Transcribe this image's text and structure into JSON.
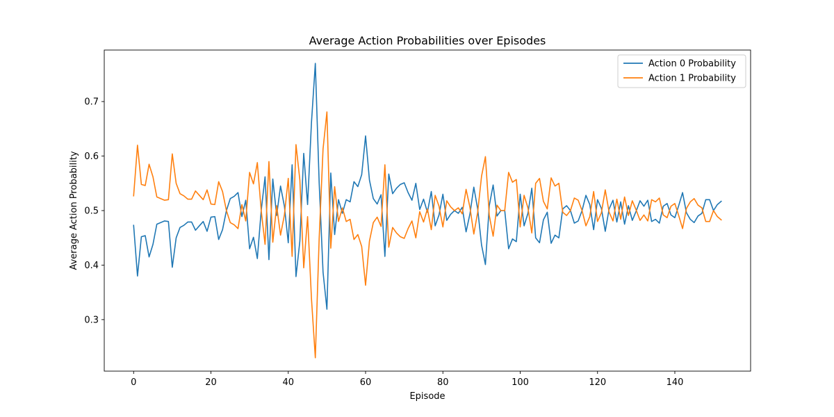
{
  "chart_data": {
    "type": "line",
    "title": "Average Action Probabilities over Episodes",
    "xlabel": "Episode",
    "ylabel": "Average Action Probability",
    "xlim": [
      -7.6,
      159.6
    ],
    "ylim": [
      0.2055,
      0.7945
    ],
    "xticks": [
      0,
      20,
      40,
      60,
      80,
      100,
      120,
      140
    ],
    "yticks": [
      0.3,
      0.4,
      0.5,
      0.6,
      0.7
    ],
    "grid": false,
    "legend_position": "top-right",
    "series": [
      {
        "name": "Action 0 Probability",
        "color": "#1f77b4",
        "values": [
          0.473,
          0.38,
          0.452,
          0.454,
          0.415,
          0.438,
          0.475,
          0.478,
          0.481,
          0.48,
          0.396,
          0.45,
          0.469,
          0.473,
          0.479,
          0.479,
          0.464,
          0.472,
          0.48,
          0.462,
          0.488,
          0.489,
          0.447,
          0.465,
          0.5,
          0.522,
          0.526,
          0.533,
          0.489,
          0.519,
          0.43,
          0.451,
          0.412,
          0.5,
          0.562,
          0.41,
          0.558,
          0.491,
          0.545,
          0.508,
          0.441,
          0.584,
          0.379,
          0.444,
          0.605,
          0.511,
          0.661,
          0.77,
          0.55,
          0.387,
          0.319,
          0.569,
          0.456,
          0.52,
          0.495,
          0.52,
          0.516,
          0.553,
          0.544,
          0.566,
          0.637,
          0.556,
          0.522,
          0.512,
          0.529,
          0.416,
          0.567,
          0.531,
          0.541,
          0.548,
          0.551,
          0.533,
          0.519,
          0.55,
          0.502,
          0.521,
          0.497,
          0.535,
          0.472,
          0.492,
          0.53,
          0.482,
          0.493,
          0.5,
          0.495,
          0.506,
          0.461,
          0.494,
          0.543,
          0.503,
          0.437,
          0.401,
          0.509,
          0.547,
          0.49,
          0.5,
          0.5,
          0.43,
          0.448,
          0.443,
          0.53,
          0.472,
          0.495,
          0.541,
          0.45,
          0.441,
          0.483,
          0.497,
          0.44,
          0.455,
          0.45,
          0.503,
          0.509,
          0.5,
          0.477,
          0.481,
          0.5,
          0.528,
          0.511,
          0.465,
          0.52,
          0.504,
          0.462,
          0.503,
          0.519,
          0.479,
          0.516,
          0.475,
          0.509,
          0.482,
          0.499,
          0.518,
          0.508,
          0.519,
          0.48,
          0.484,
          0.477,
          0.508,
          0.513,
          0.492,
          0.487,
          0.509,
          0.533,
          0.496,
          0.484,
          0.478,
          0.49,
          0.495,
          0.52,
          0.52,
          0.5,
          0.511,
          0.517
        ]
      },
      {
        "name": "Action 1 Probability",
        "color": "#ff7f0e",
        "values": [
          0.527,
          0.62,
          0.548,
          0.546,
          0.585,
          0.562,
          0.525,
          0.522,
          0.519,
          0.52,
          0.604,
          0.55,
          0.531,
          0.527,
          0.521,
          0.521,
          0.536,
          0.528,
          0.52,
          0.538,
          0.512,
          0.511,
          0.553,
          0.535,
          0.5,
          0.478,
          0.474,
          0.467,
          0.511,
          0.481,
          0.57,
          0.549,
          0.588,
          0.5,
          0.438,
          0.59,
          0.442,
          0.509,
          0.455,
          0.492,
          0.559,
          0.416,
          0.621,
          0.556,
          0.395,
          0.489,
          0.339,
          0.23,
          0.45,
          0.613,
          0.681,
          0.431,
          0.544,
          0.48,
          0.505,
          0.48,
          0.484,
          0.447,
          0.456,
          0.434,
          0.363,
          0.444,
          0.478,
          0.488,
          0.471,
          0.584,
          0.433,
          0.469,
          0.459,
          0.452,
          0.449,
          0.467,
          0.481,
          0.45,
          0.498,
          0.479,
          0.503,
          0.465,
          0.528,
          0.508,
          0.47,
          0.518,
          0.507,
          0.5,
          0.505,
          0.494,
          0.539,
          0.506,
          0.457,
          0.497,
          0.563,
          0.599,
          0.491,
          0.453,
          0.51,
          0.5,
          0.5,
          0.57,
          0.552,
          0.557,
          0.47,
          0.528,
          0.505,
          0.459,
          0.55,
          0.559,
          0.517,
          0.503,
          0.56,
          0.545,
          0.55,
          0.497,
          0.491,
          0.5,
          0.523,
          0.519,
          0.5,
          0.472,
          0.489,
          0.535,
          0.48,
          0.496,
          0.538,
          0.497,
          0.481,
          0.521,
          0.484,
          0.525,
          0.491,
          0.518,
          0.501,
          0.482,
          0.492,
          0.481,
          0.52,
          0.516,
          0.523,
          0.492,
          0.487,
          0.508,
          0.513,
          0.491,
          0.467,
          0.504,
          0.516,
          0.522,
          0.51,
          0.505,
          0.48,
          0.48,
          0.5,
          0.489,
          0.483
        ]
      }
    ]
  }
}
